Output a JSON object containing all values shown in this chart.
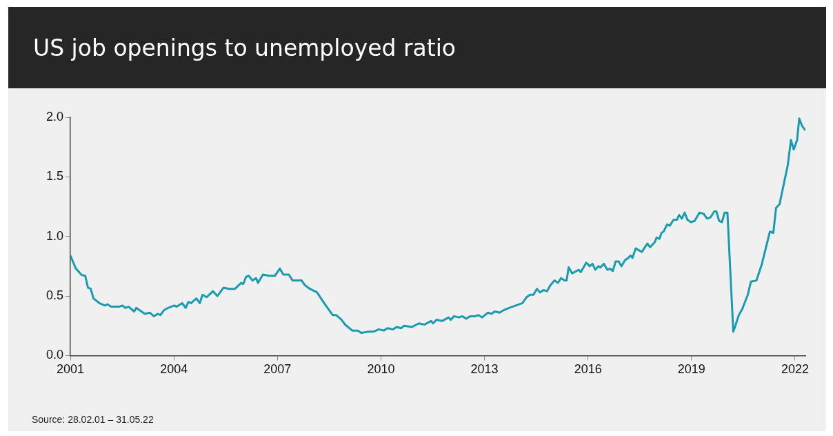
{
  "chart_data": {
    "type": "line",
    "title": "US job openings to unemployed ratio",
    "annotations": [
      "Source: 28.02.01 – 31.05.22"
    ],
    "xlim": [
      2001,
      2022.3
    ],
    "xticks": [
      2001,
      2004,
      2007,
      2010,
      2013,
      2016,
      2019,
      2022
    ],
    "ylim": [
      0,
      2
    ],
    "yticks": [
      {
        "value": 0,
        "label": "0.0"
      },
      {
        "value": 0.5,
        "label": "0.5"
      },
      {
        "value": 1,
        "label": "1.0"
      },
      {
        "value": 1.5,
        "label": "1.5"
      },
      {
        "value": 2,
        "label": "2.0"
      }
    ],
    "grid": false,
    "legend": false,
    "marker": "none",
    "line_style": "solid",
    "series": [
      {
        "color": "#1a9bb0",
        "x": [
          2001.0,
          2001.16,
          2001.33,
          2001.43,
          2001.51,
          2001.59,
          2001.67,
          2001.84,
          2002.0,
          2002.08,
          2002.18,
          2002.41,
          2002.51,
          2002.59,
          2002.69,
          2002.85,
          2002.91,
          2003.06,
          2003.16,
          2003.3,
          2003.42,
          2003.53,
          2003.61,
          2003.71,
          2003.83,
          2004.01,
          2004.08,
          2004.24,
          2004.34,
          2004.42,
          2004.5,
          2004.65,
          2004.75,
          2004.83,
          2004.95,
          2005.13,
          2005.26,
          2005.44,
          2005.6,
          2005.77,
          2005.95,
          2006.01,
          2006.09,
          2006.17,
          2006.28,
          2006.38,
          2006.44,
          2006.58,
          2006.76,
          2006.93,
          2007.07,
          2007.17,
          2007.33,
          2007.44,
          2007.7,
          2007.8,
          2007.94,
          2008.15,
          2008.33,
          2008.6,
          2008.7,
          2008.86,
          2008.96,
          2009.17,
          2009.33,
          2009.43,
          2009.62,
          2009.78,
          2009.94,
          2010.08,
          2010.19,
          2010.35,
          2010.45,
          2010.59,
          2010.67,
          2010.9,
          2011.1,
          2011.26,
          2011.45,
          2011.51,
          2011.61,
          2011.77,
          2011.96,
          2012.02,
          2012.12,
          2012.26,
          2012.36,
          2012.47,
          2012.59,
          2012.73,
          2012.83,
          2012.93,
          2013.1,
          2013.2,
          2013.3,
          2013.44,
          2013.55,
          2013.71,
          2013.91,
          2014.1,
          2014.22,
          2014.32,
          2014.42,
          2014.52,
          2014.61,
          2014.71,
          2014.81,
          2014.91,
          2015.03,
          2015.13,
          2015.22,
          2015.32,
          2015.38,
          2015.44,
          2015.54,
          2015.73,
          2015.79,
          2015.95,
          2016.05,
          2016.13,
          2016.21,
          2016.3,
          2016.36,
          2016.46,
          2016.56,
          2016.64,
          2016.72,
          2016.8,
          2016.89,
          2016.97,
          2017.07,
          2017.17,
          2017.23,
          2017.29,
          2017.38,
          2017.56,
          2017.72,
          2017.8,
          2017.93,
          2017.99,
          2018.07,
          2018.13,
          2018.19,
          2018.29,
          2018.37,
          2018.48,
          2018.58,
          2018.64,
          2018.72,
          2018.8,
          2018.88,
          2018.98,
          2019.09,
          2019.23,
          2019.35,
          2019.45,
          2019.55,
          2019.66,
          2019.72,
          2019.8,
          2019.88,
          2019.96,
          2020.04,
          2020.21,
          2020.27,
          2020.37,
          2020.47,
          2020.63,
          2020.72,
          2020.88,
          2021.04,
          2021.27,
          2021.37,
          2021.45,
          2021.55,
          2021.79,
          2021.88,
          2021.96,
          2022.06,
          2022.12,
          2022.2,
          2022.3
        ],
        "values": [
          0.84,
          0.73,
          0.675,
          0.67,
          0.57,
          0.56,
          0.48,
          0.44,
          0.42,
          0.43,
          0.41,
          0.41,
          0.42,
          0.4,
          0.41,
          0.37,
          0.4,
          0.37,
          0.35,
          0.36,
          0.33,
          0.35,
          0.34,
          0.38,
          0.4,
          0.42,
          0.41,
          0.44,
          0.4,
          0.45,
          0.44,
          0.48,
          0.44,
          0.51,
          0.49,
          0.54,
          0.5,
          0.57,
          0.56,
          0.56,
          0.61,
          0.6,
          0.66,
          0.67,
          0.63,
          0.65,
          0.61,
          0.68,
          0.67,
          0.67,
          0.73,
          0.68,
          0.68,
          0.63,
          0.63,
          0.59,
          0.56,
          0.53,
          0.45,
          0.34,
          0.34,
          0.3,
          0.26,
          0.21,
          0.21,
          0.19,
          0.2,
          0.2,
          0.22,
          0.21,
          0.23,
          0.22,
          0.24,
          0.23,
          0.25,
          0.24,
          0.27,
          0.26,
          0.29,
          0.27,
          0.3,
          0.29,
          0.32,
          0.3,
          0.33,
          0.32,
          0.33,
          0.31,
          0.33,
          0.33,
          0.34,
          0.32,
          0.36,
          0.35,
          0.37,
          0.36,
          0.38,
          0.4,
          0.42,
          0.44,
          0.49,
          0.51,
          0.51,
          0.56,
          0.53,
          0.55,
          0.54,
          0.59,
          0.63,
          0.61,
          0.65,
          0.63,
          0.63,
          0.74,
          0.69,
          0.72,
          0.7,
          0.78,
          0.75,
          0.77,
          0.72,
          0.75,
          0.74,
          0.77,
          0.72,
          0.73,
          0.71,
          0.79,
          0.79,
          0.75,
          0.8,
          0.82,
          0.84,
          0.82,
          0.9,
          0.87,
          0.94,
          0.91,
          0.95,
          0.99,
          0.98,
          1.03,
          1.04,
          1.1,
          1.09,
          1.14,
          1.14,
          1.18,
          1.15,
          1.2,
          1.14,
          1.12,
          1.13,
          1.2,
          1.19,
          1.15,
          1.16,
          1.21,
          1.21,
          1.13,
          1.12,
          1.2,
          1.2,
          0.2,
          0.25,
          0.34,
          0.39,
          0.51,
          0.62,
          0.63,
          0.77,
          1.04,
          1.03,
          1.24,
          1.27,
          1.6,
          1.81,
          1.73,
          1.81,
          1.99,
          1.93,
          1.89
        ]
      }
    ]
  }
}
